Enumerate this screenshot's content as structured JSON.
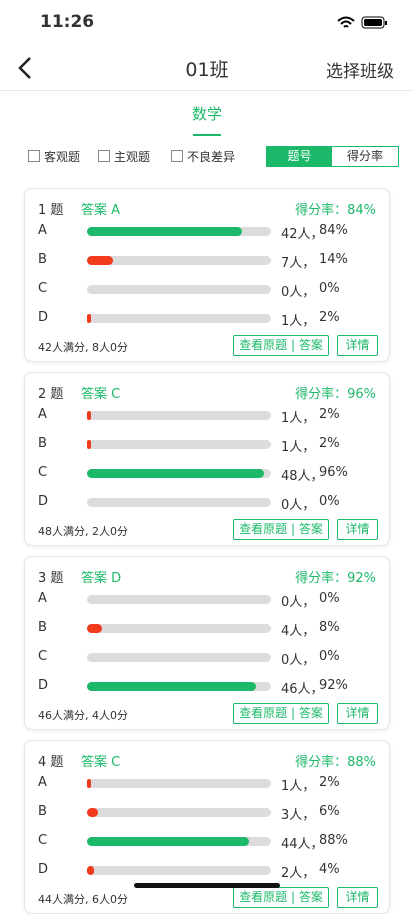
{
  "status_bar": {
    "time": "11:26"
  },
  "nav": {
    "title": "01班",
    "action": "选择班级"
  },
  "tab": {
    "label": "数学"
  },
  "filters": [
    "客观题",
    "主观题",
    "不良差异"
  ],
  "segments": [
    "题号",
    "得分率"
  ],
  "card_buttons": [
    "查看原题 | 答案",
    "详情"
  ],
  "questions": [
    {
      "number": "1 题",
      "answer": "答案 A",
      "rate": "得分率：84%",
      "summary": "42人满分, 8人0分",
      "options": [
        {
          "label": "A",
          "value": 84,
          "value_label": "84%",
          "count_label": "42人，",
          "color": "#1cb96a"
        },
        {
          "label": "B",
          "value": 14,
          "value_label": "14%",
          "count_label": "7人，",
          "color": "#f23a1c"
        },
        {
          "label": "C",
          "value": 0,
          "value_label": "0%",
          "count_label": "0人，",
          "color": "#f23a1c"
        },
        {
          "label": "D",
          "value": 2,
          "value_label": "2%",
          "count_label": "1人，",
          "color": "#f23a1c"
        }
      ]
    },
    {
      "number": "2 题",
      "answer": "答案 C",
      "rate": "得分率：96%",
      "summary": "48人满分, 2人0分",
      "options": [
        {
          "label": "A",
          "value": 2,
          "value_label": "2%",
          "count_label": "1人，",
          "color": "#f23a1c"
        },
        {
          "label": "B",
          "value": 2,
          "value_label": "2%",
          "count_label": "1人，",
          "color": "#f23a1c"
        },
        {
          "label": "C",
          "value": 96,
          "value_label": "96%",
          "count_label": "48人，",
          "color": "#1cb96a"
        },
        {
          "label": "D",
          "value": 0,
          "value_label": "0%",
          "count_label": "0人，",
          "color": "#f23a1c"
        }
      ]
    },
    {
      "number": "3 题",
      "answer": "答案 D",
      "rate": "得分率：92%",
      "summary": "46人满分, 4人0分",
      "options": [
        {
          "label": "A",
          "value": 0,
          "value_label": "0%",
          "count_label": "0人，",
          "color": "#f23a1c"
        },
        {
          "label": "B",
          "value": 8,
          "value_label": "8%",
          "count_label": "4人，",
          "color": "#f23a1c"
        },
        {
          "label": "C",
          "value": 0,
          "value_label": "0%",
          "count_label": "0人，",
          "color": "#f23a1c"
        },
        {
          "label": "D",
          "value": 92,
          "value_label": "92%",
          "count_label": "46人，",
          "color": "#1cb96a"
        }
      ]
    },
    {
      "number": "4 题",
      "answer": "答案 C",
      "rate": "得分率：88%",
      "summary": "44人满分, 6人0分",
      "options": [
        {
          "label": "A",
          "value": 2,
          "value_label": "2%",
          "count_label": "1人，",
          "color": "#f23a1c"
        },
        {
          "label": "B",
          "value": 6,
          "value_label": "6%",
          "count_label": "3人，",
          "color": "#f23a1c"
        },
        {
          "label": "C",
          "value": 88,
          "value_label": "88%",
          "count_label": "44人，",
          "color": "#1cb96a"
        },
        {
          "label": "D",
          "value": 4,
          "value_label": "4%",
          "count_label": "2人，",
          "color": "#f23a1c"
        }
      ]
    }
  ]
}
